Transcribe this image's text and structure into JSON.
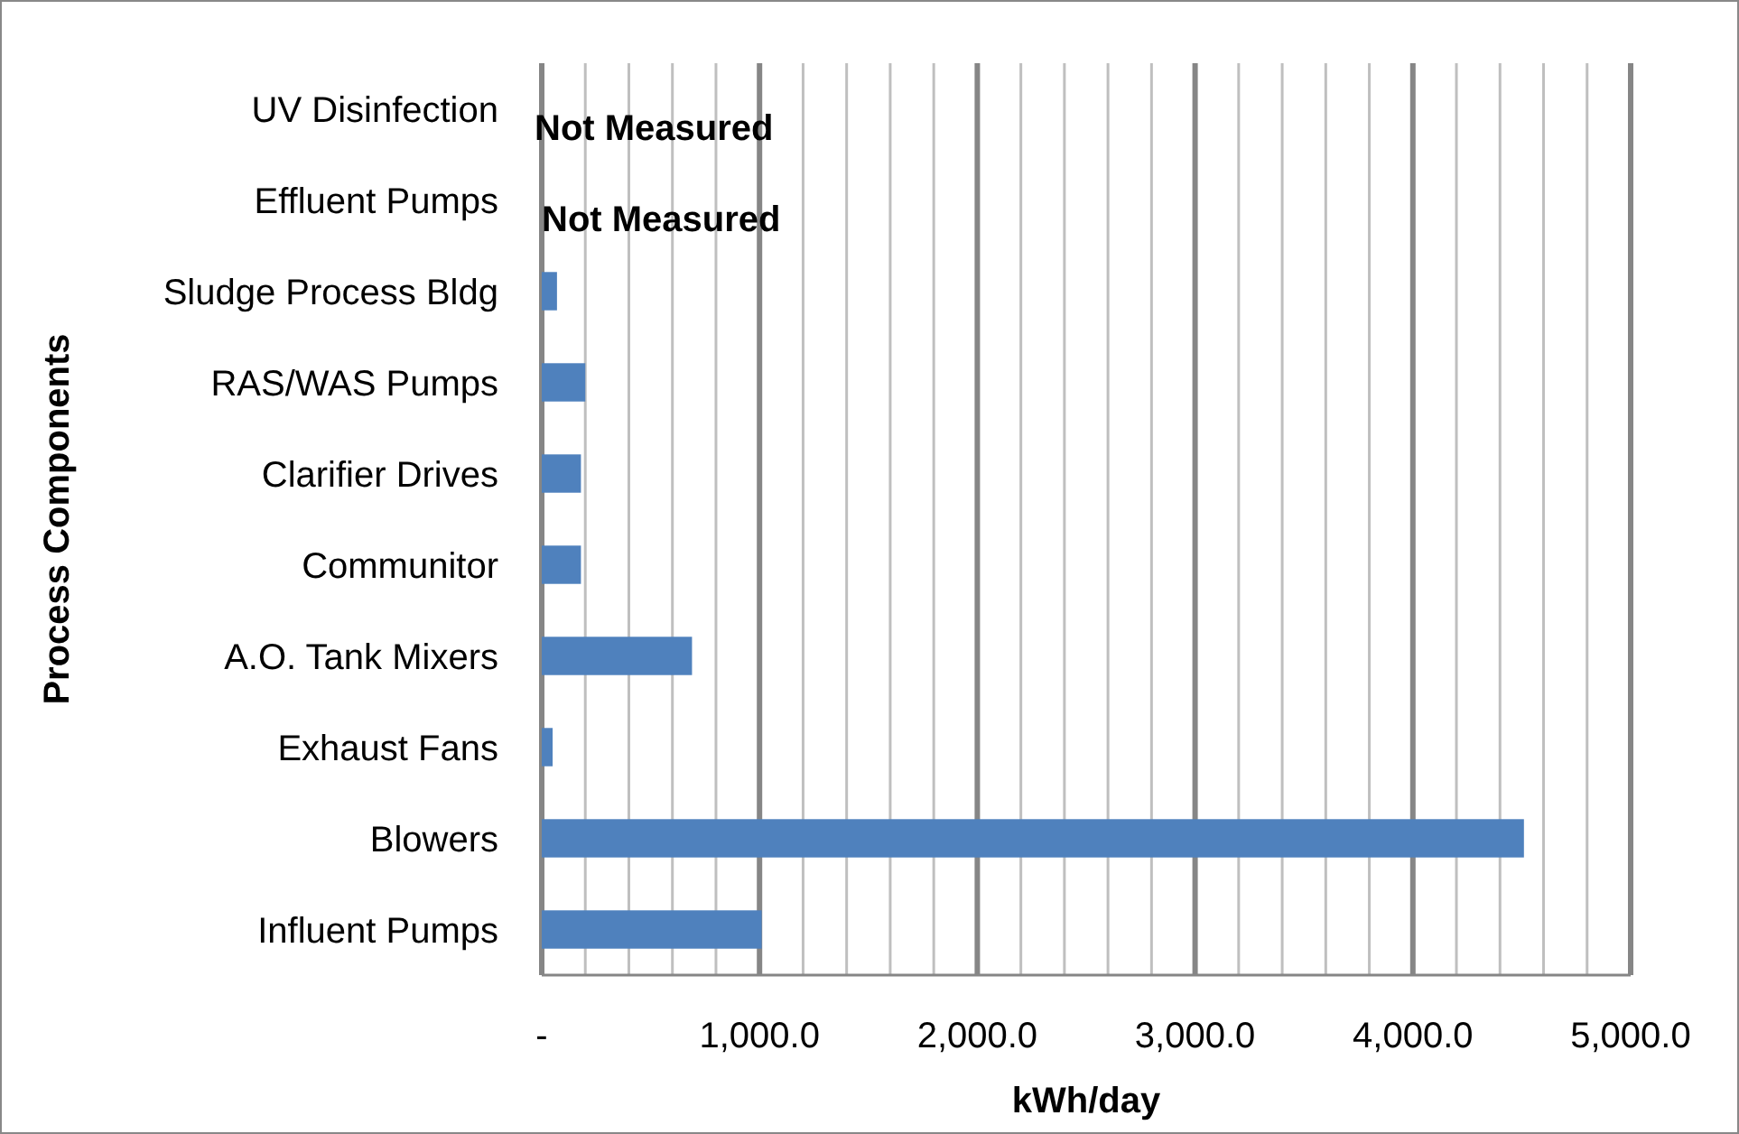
{
  "chart_data": {
    "type": "bar",
    "orientation": "horizontal",
    "xlabel": "kWh/day",
    "ylabel": "Process Components",
    "categories": [
      "UV Disinfection",
      "Effluent Pumps",
      "Sludge Process Bldg",
      "RAS/WAS Pumps",
      "Clarifier Drives",
      "Communitor",
      "A.O. Tank Mixers",
      "Exhaust Fans",
      "Blowers",
      "Influent Pumps"
    ],
    "values": [
      null,
      null,
      70,
      200,
      180,
      180,
      690,
      50,
      4510,
      1010
    ],
    "color": "#4f81bd",
    "xlim": [
      0,
      5000
    ],
    "xticks": [
      {
        "value": 0,
        "label": "-"
      },
      {
        "value": 200,
        "label": null
      },
      {
        "value": 400,
        "label": null
      },
      {
        "value": 600,
        "label": null
      },
      {
        "value": 800,
        "label": null
      },
      {
        "value": 1000,
        "label": "1,000.0"
      },
      {
        "value": 1200,
        "label": null
      },
      {
        "value": 1400,
        "label": null
      },
      {
        "value": 1600,
        "label": null
      },
      {
        "value": 1800,
        "label": null
      },
      {
        "value": 2000,
        "label": "2,000.0"
      },
      {
        "value": 2200,
        "label": null
      },
      {
        "value": 2400,
        "label": null
      },
      {
        "value": 2600,
        "label": null
      },
      {
        "value": 2800,
        "label": null
      },
      {
        "value": 3000,
        "label": "3,000.0"
      },
      {
        "value": 3200,
        "label": null
      },
      {
        "value": 3400,
        "label": null
      },
      {
        "value": 3600,
        "label": null
      },
      {
        "value": 3800,
        "label": null
      },
      {
        "value": 4000,
        "label": "4,000.0"
      },
      {
        "value": 4200,
        "label": null
      },
      {
        "value": 4400,
        "label": null
      },
      {
        "value": 4600,
        "label": null
      },
      {
        "value": 4800,
        "label": null
      },
      {
        "value": 5000,
        "label": "5,000.0"
      }
    ],
    "grid": "x",
    "annotations": [
      "Not Measured",
      "Not Measured"
    ]
  }
}
